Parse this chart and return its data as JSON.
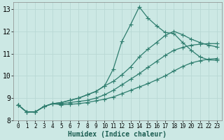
{
  "xlabel": "Humidex (Indice chaleur)",
  "xlim": [
    -0.5,
    23.5
  ],
  "ylim": [
    8.0,
    13.3
  ],
  "yticks": [
    8,
    9,
    10,
    11,
    12,
    13
  ],
  "xticks": [
    0,
    1,
    2,
    3,
    4,
    5,
    6,
    7,
    8,
    9,
    10,
    11,
    12,
    13,
    14,
    15,
    16,
    17,
    18,
    19,
    20,
    21,
    22,
    23
  ],
  "bg_color": "#cce8e4",
  "grid_color": "#b8d8d4",
  "line_color": "#2e7d6e",
  "line_width": 0.9,
  "marker": "+",
  "marker_size": 4,
  "series": [
    [
      8.7,
      8.38,
      8.38,
      8.62,
      8.75,
      8.8,
      8.9,
      9.0,
      9.15,
      9.3,
      9.55,
      10.3,
      11.55,
      12.3,
      13.1,
      12.6,
      12.25,
      11.95,
      11.9,
      11.5,
      11.15,
      10.85,
      10.72,
      10.7
    ],
    [
      8.7,
      8.38,
      8.38,
      8.62,
      8.75,
      8.8,
      8.9,
      9.0,
      9.15,
      9.3,
      9.55,
      9.75,
      10.05,
      10.4,
      10.85,
      11.2,
      11.5,
      11.82,
      12.0,
      11.85,
      11.65,
      11.5,
      11.38,
      11.3
    ],
    [
      8.7,
      8.38,
      8.38,
      8.62,
      8.75,
      8.75,
      8.8,
      8.85,
      8.9,
      9.0,
      9.15,
      9.35,
      9.6,
      9.85,
      10.1,
      10.38,
      10.65,
      10.92,
      11.15,
      11.28,
      11.38,
      11.42,
      11.45,
      11.45
    ],
    [
      8.7,
      8.38,
      8.38,
      8.62,
      8.75,
      8.7,
      8.72,
      8.75,
      8.8,
      8.88,
      8.95,
      9.05,
      9.2,
      9.35,
      9.5,
      9.65,
      9.82,
      10.0,
      10.22,
      10.42,
      10.58,
      10.68,
      10.75,
      10.78
    ]
  ]
}
